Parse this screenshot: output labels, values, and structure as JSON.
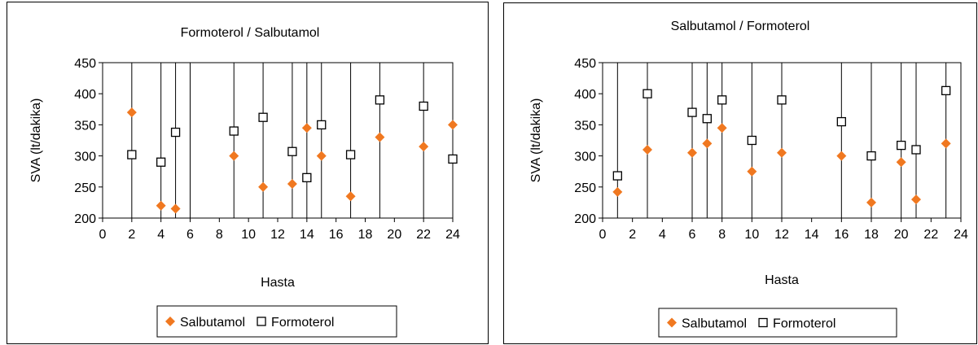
{
  "chart_data": [
    {
      "type": "scatter",
      "title": "Formoterol / Salbutamol",
      "xlabel": "Hasta",
      "ylabel": "SVA (lt/dakika)",
      "xlim": [
        0,
        24
      ],
      "ylim": [
        200,
        450
      ],
      "x_ticks": [
        "0",
        "2",
        "4",
        "6",
        "8",
        "10",
        "12",
        "14",
        "16",
        "18",
        "20",
        "22",
        "24"
      ],
      "y_ticks": [
        "200",
        "250",
        "300",
        "350",
        "400",
        "450"
      ],
      "vertical_gridlines_at": [
        2,
        4,
        5,
        6,
        9,
        11,
        13,
        14,
        15,
        17,
        19,
        22,
        24
      ],
      "legend_position": "bottom",
      "series": [
        {
          "name": "Salbutamol",
          "marker": "diamond",
          "color": "#f07820",
          "points": [
            [
              2,
              370
            ],
            [
              4,
              220
            ],
            [
              5,
              215
            ],
            [
              9,
              300
            ],
            [
              11,
              250
            ],
            [
              13,
              255
            ],
            [
              14,
              345
            ],
            [
              15,
              300
            ],
            [
              17,
              235
            ],
            [
              19,
              330
            ],
            [
              22,
              315
            ],
            [
              24,
              350
            ]
          ]
        },
        {
          "name": "Formoterol",
          "marker": "square",
          "color": "#000000",
          "points": [
            [
              2,
              302
            ],
            [
              4,
              290
            ],
            [
              5,
              338
            ],
            [
              9,
              340
            ],
            [
              11,
              362
            ],
            [
              13,
              307
            ],
            [
              14,
              265
            ],
            [
              15,
              350
            ],
            [
              17,
              302
            ],
            [
              19,
              390
            ],
            [
              22,
              380
            ],
            [
              24,
              295
            ]
          ]
        }
      ]
    },
    {
      "type": "scatter",
      "title": "Salbutamol / Formoterol",
      "xlabel": "Hasta",
      "ylabel": "SVA (lt/dakika)",
      "xlim": [
        0,
        24
      ],
      "ylim": [
        200,
        450
      ],
      "x_ticks": [
        "0",
        "2",
        "4",
        "6",
        "8",
        "10",
        "12",
        "14",
        "16",
        "18",
        "20",
        "22",
        "24"
      ],
      "y_ticks": [
        "200",
        "250",
        "300",
        "350",
        "400",
        "450"
      ],
      "vertical_gridlines_at": [
        1,
        3,
        6,
        7,
        8,
        10,
        12,
        16,
        18,
        20,
        21,
        23
      ],
      "legend_position": "bottom",
      "series": [
        {
          "name": "Salbutamol",
          "marker": "diamond",
          "color": "#f07820",
          "points": [
            [
              1,
              242
            ],
            [
              3,
              310
            ],
            [
              6,
              305
            ],
            [
              7,
              320
            ],
            [
              8,
              345
            ],
            [
              10,
              275
            ],
            [
              12,
              305
            ],
            [
              16,
              300
            ],
            [
              18,
              225
            ],
            [
              20,
              290
            ],
            [
              21,
              230
            ],
            [
              23,
              320
            ]
          ]
        },
        {
          "name": "Formoterol",
          "marker": "square",
          "color": "#000000",
          "points": [
            [
              1,
              268
            ],
            [
              3,
              400
            ],
            [
              6,
              370
            ],
            [
              7,
              360
            ],
            [
              8,
              390
            ],
            [
              10,
              325
            ],
            [
              12,
              390
            ],
            [
              16,
              355
            ],
            [
              18,
              300
            ],
            [
              20,
              317
            ],
            [
              21,
              310
            ],
            [
              23,
              405
            ]
          ]
        }
      ]
    }
  ]
}
